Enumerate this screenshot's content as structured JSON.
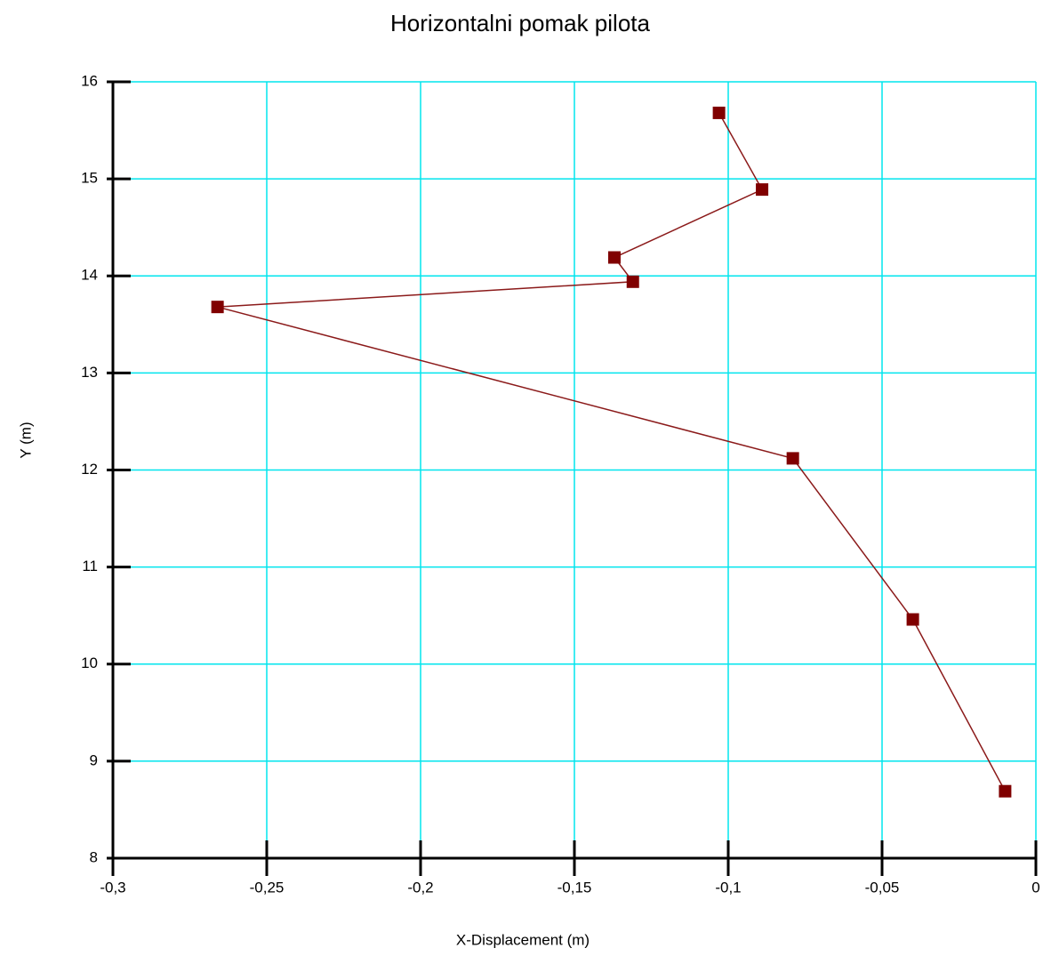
{
  "chart_data": {
    "type": "line",
    "title": "Horizontalni pomak pilota",
    "x_label": "X-Displacement (m)",
    "y_label": "Y (m)",
    "x": [
      -0.103,
      -0.089,
      -0.137,
      -0.131,
      -0.266,
      -0.079,
      -0.04,
      -0.01
    ],
    "values": [
      15.68,
      14.89,
      14.19,
      13.94,
      13.68,
      12.12,
      10.46,
      8.69
    ],
    "color": "#800000",
    "line_color": "#8b1a1a",
    "grid": true,
    "grid_color": "#00e5ee",
    "xlim": [
      -0.3,
      0
    ],
    "xticks": [
      {
        "value": -0.3,
        "label": "-0,3"
      },
      {
        "value": -0.25,
        "label": "-0,25"
      },
      {
        "value": -0.2,
        "label": "-0,2"
      },
      {
        "value": -0.15,
        "label": "-0,15"
      },
      {
        "value": -0.1,
        "label": "-0,1"
      },
      {
        "value": -0.05,
        "label": "-0,05"
      },
      0
    ],
    "ylim": [
      8,
      16
    ],
    "yticks": [
      8,
      9,
      10,
      11,
      12,
      13,
      14,
      15,
      16
    ]
  }
}
